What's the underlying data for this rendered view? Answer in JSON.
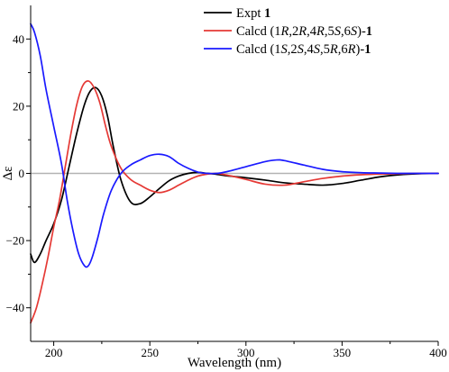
{
  "chart_data": {
    "type": "line",
    "xlabel": "Wavelength (nm)",
    "ylabel": "Δε",
    "xlim": [
      188,
      400
    ],
    "ylim": [
      -50,
      50
    ],
    "x_ticks": [
      200,
      250,
      300,
      350,
      400
    ],
    "y_ticks": [
      -40,
      -20,
      0,
      20,
      40
    ],
    "zero_line_color": "#b3b3b3",
    "legend_position": "top-right",
    "legend": [
      {
        "parts": [
          {
            "text": "Expt ",
            "style": "normal"
          },
          {
            "text": "1",
            "style": "bold"
          }
        ]
      },
      {
        "parts": [
          {
            "text": "Calcd (1",
            "style": "normal"
          },
          {
            "text": "R",
            "style": "italic"
          },
          {
            "text": ",2",
            "style": "normal"
          },
          {
            "text": "R",
            "style": "italic"
          },
          {
            "text": ",4",
            "style": "normal"
          },
          {
            "text": "R",
            "style": "italic"
          },
          {
            "text": ",5",
            "style": "normal"
          },
          {
            "text": "S",
            "style": "italic"
          },
          {
            "text": ",6",
            "style": "normal"
          },
          {
            "text": "S",
            "style": "italic"
          },
          {
            "text": ")-",
            "style": "normal"
          },
          {
            "text": "1",
            "style": "bold"
          }
        ]
      },
      {
        "parts": [
          {
            "text": "Calcd (1",
            "style": "normal"
          },
          {
            "text": "S",
            "style": "italic"
          },
          {
            "text": ",2",
            "style": "normal"
          },
          {
            "text": "S",
            "style": "italic"
          },
          {
            "text": ",4",
            "style": "normal"
          },
          {
            "text": "S",
            "style": "italic"
          },
          {
            "text": ",5",
            "style": "normal"
          },
          {
            "text": "R",
            "style": "italic"
          },
          {
            "text": ",6",
            "style": "normal"
          },
          {
            "text": "R",
            "style": "italic"
          },
          {
            "text": ")-",
            "style": "normal"
          },
          {
            "text": "1",
            "style": "bold"
          }
        ]
      }
    ],
    "series": [
      {
        "name": "Expt 1",
        "color": "#000000",
        "x": [
          188,
          190,
          193,
          196,
          200,
          204,
          208,
          212,
          216,
          219,
          222,
          225,
          228,
          231,
          235,
          240,
          245,
          250,
          255,
          260,
          265,
          270,
          275,
          280,
          285,
          290,
          295,
          300,
          310,
          320,
          330,
          340,
          350,
          360,
          370,
          380,
          390,
          400
        ],
        "y": [
          -24,
          -26.5,
          -24,
          -20,
          -15,
          -8,
          2,
          12,
          20.5,
          24.5,
          25.5,
          23,
          17,
          8,
          -2,
          -8.5,
          -9,
          -7,
          -4.5,
          -2.2,
          -0.8,
          0,
          0.3,
          0,
          -0.3,
          -0.7,
          -1,
          -1.3,
          -2,
          -2.8,
          -3.2,
          -3.5,
          -3,
          -2,
          -1,
          -0.4,
          -0.1,
          0
        ]
      },
      {
        "name": "Calcd (1R,2R,4R,5S,6S)-1",
        "color": "#e53935",
        "x": [
          188,
          191,
          194,
          197,
          200,
          203,
          206,
          209,
          212,
          215,
          218,
          221,
          224,
          227,
          230,
          235,
          240,
          245,
          250,
          255,
          260,
          265,
          270,
          275,
          280,
          285,
          290,
          300,
          310,
          320,
          330,
          340,
          350,
          360,
          370,
          380,
          390,
          400
        ],
        "y": [
          -44.5,
          -40,
          -33,
          -25,
          -16,
          -8,
          2,
          12,
          20.5,
          26,
          27.5,
          25.5,
          21,
          14,
          8,
          1.5,
          -1.8,
          -3.5,
          -5,
          -5.7,
          -5,
          -3.5,
          -2,
          -0.8,
          -0.2,
          0,
          -0.5,
          -1.8,
          -3.2,
          -3.5,
          -2.5,
          -1.5,
          -0.8,
          -0.4,
          -0.2,
          -0.1,
          0,
          0
        ]
      },
      {
        "name": "Calcd (1S,2S,4S,5R,6R)-1",
        "color": "#1a1aff",
        "x": [
          188,
          190,
          193,
          196,
          200,
          204,
          207,
          210,
          213,
          216,
          218,
          220,
          223,
          226,
          230,
          235,
          240,
          245,
          250,
          255,
          260,
          265,
          270,
          275,
          280,
          285,
          290,
          300,
          310,
          316,
          320,
          330,
          340,
          350,
          360,
          370,
          380,
          390,
          400
        ],
        "y": [
          44.5,
          42,
          35,
          25,
          14,
          3,
          -8,
          -17,
          -24,
          -27.5,
          -27.5,
          -25,
          -19,
          -12,
          -5,
          0,
          2.5,
          4,
          5.3,
          5.7,
          5,
          3,
          1.5,
          0.4,
          0,
          0,
          0.5,
          2,
          3.5,
          4,
          3.8,
          2.5,
          1.2,
          0.5,
          0.2,
          0.1,
          0,
          0,
          0
        ]
      }
    ]
  }
}
